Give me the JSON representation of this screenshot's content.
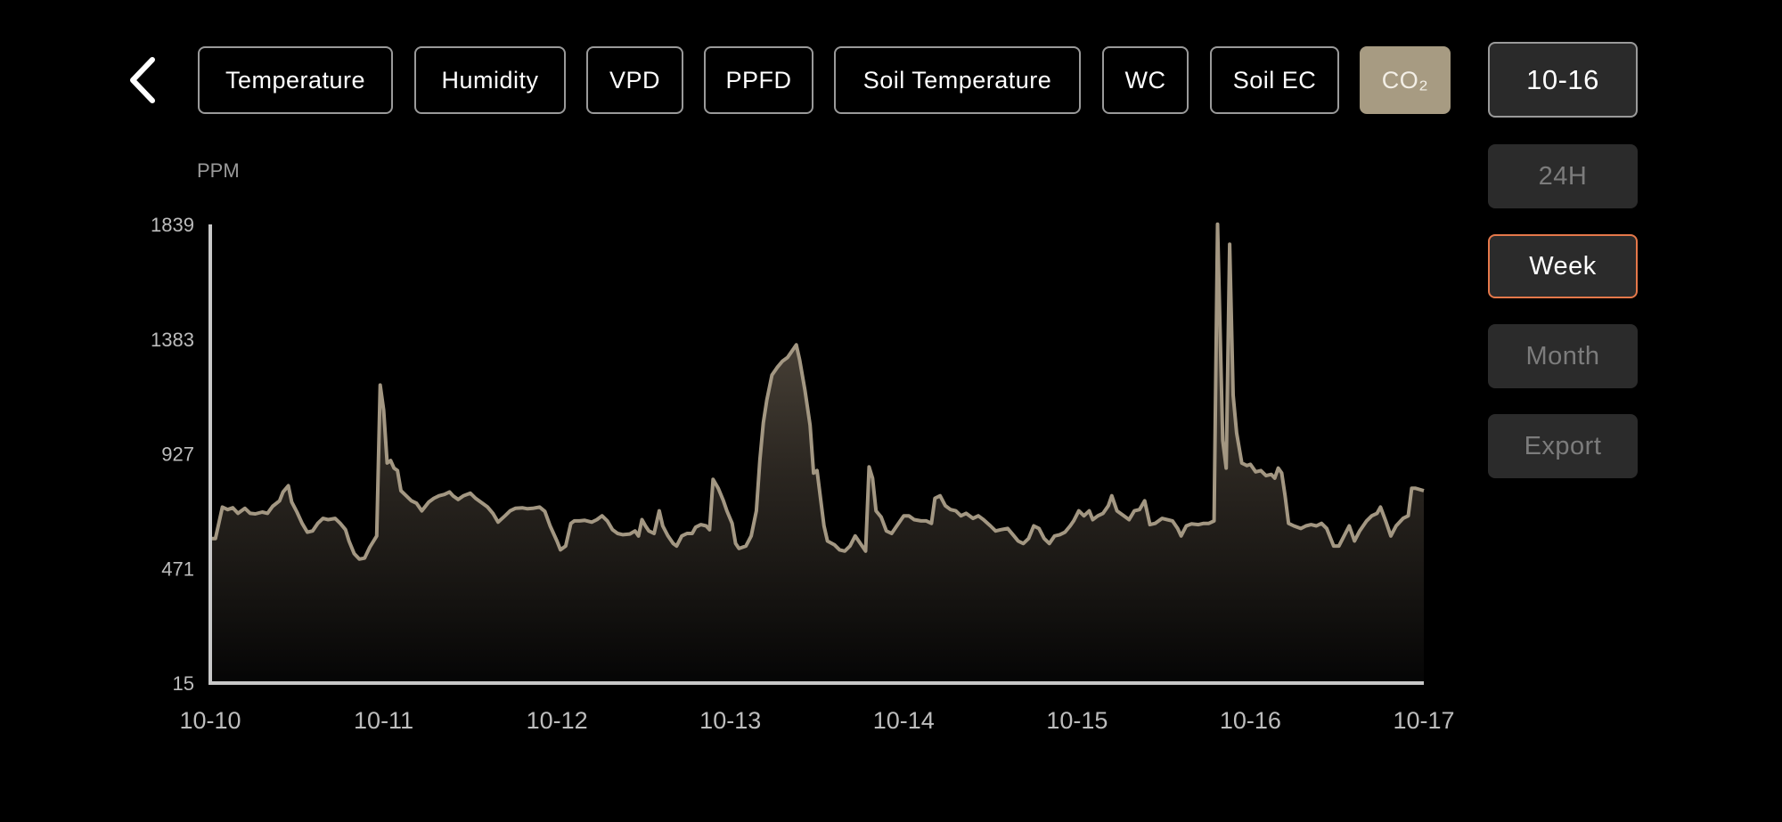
{
  "tabs": [
    {
      "label": "Temperature",
      "active": false
    },
    {
      "label": "Humidity",
      "active": false
    },
    {
      "label": "VPD",
      "active": false
    },
    {
      "label": "PPFD",
      "active": false
    },
    {
      "label": "Soil Temperature",
      "active": false
    },
    {
      "label": "WC",
      "active": false
    },
    {
      "label": "Soil EC",
      "active": false
    },
    {
      "label": "CO₂",
      "active": true
    }
  ],
  "side": {
    "date": "10-16",
    "range_24h": "24H",
    "range_week": "Week",
    "range_month": "Month",
    "export": "Export",
    "selected_range": "Week"
  },
  "colors": {
    "accent": "#a79b82",
    "line": "#a39782",
    "selection_border": "#e5784a",
    "axis": "#c8c8c8"
  },
  "chart_data": {
    "type": "area",
    "ylabel": "PPM",
    "yticks": [
      15,
      471,
      927,
      1383,
      1839
    ],
    "ylim": [
      15,
      1839
    ],
    "xticks": [
      "10-10",
      "10-11",
      "10-12",
      "10-13",
      "10-14",
      "10-15",
      "10-16",
      "10-17"
    ],
    "xlim": [
      0,
      7
    ],
    "grid": false,
    "series": [
      {
        "values": [
          [
            0.0,
            590
          ],
          [
            0.03,
            590
          ],
          [
            0.07,
            715
          ],
          [
            0.1,
            705
          ],
          [
            0.13,
            712
          ],
          [
            0.16,
            690
          ],
          [
            0.2,
            710
          ],
          [
            0.23,
            690
          ],
          [
            0.26,
            688
          ],
          [
            0.3,
            695
          ],
          [
            0.33,
            690
          ],
          [
            0.36,
            718
          ],
          [
            0.4,
            740
          ],
          [
            0.42,
            775
          ],
          [
            0.45,
            800
          ],
          [
            0.47,
            735
          ],
          [
            0.5,
            695
          ],
          [
            0.53,
            650
          ],
          [
            0.56,
            615
          ],
          [
            0.59,
            620
          ],
          [
            0.62,
            650
          ],
          [
            0.65,
            670
          ],
          [
            0.68,
            665
          ],
          [
            0.72,
            670
          ],
          [
            0.75,
            650
          ],
          [
            0.78,
            625
          ],
          [
            0.8,
            580
          ],
          [
            0.83,
            530
          ],
          [
            0.86,
            508
          ],
          [
            0.89,
            512
          ],
          [
            0.92,
            555
          ],
          [
            0.96,
            600
          ],
          [
            0.98,
            1200
          ],
          [
            1.0,
            1100
          ],
          [
            1.02,
            890
          ],
          [
            1.04,
            900
          ],
          [
            1.06,
            870
          ],
          [
            1.08,
            860
          ],
          [
            1.1,
            780
          ],
          [
            1.13,
            760
          ],
          [
            1.16,
            740
          ],
          [
            1.19,
            730
          ],
          [
            1.22,
            700
          ],
          [
            1.26,
            735
          ],
          [
            1.29,
            750
          ],
          [
            1.32,
            760
          ],
          [
            1.35,
            765
          ],
          [
            1.38,
            775
          ],
          [
            1.4,
            760
          ],
          [
            1.43,
            745
          ],
          [
            1.46,
            760
          ],
          [
            1.5,
            770
          ],
          [
            1.53,
            750
          ],
          [
            1.57,
            730
          ],
          [
            1.6,
            715
          ],
          [
            1.63,
            690
          ],
          [
            1.66,
            655
          ],
          [
            1.7,
            680
          ],
          [
            1.73,
            700
          ],
          [
            1.76,
            710
          ],
          [
            1.8,
            712
          ],
          [
            1.83,
            708
          ],
          [
            1.86,
            710
          ],
          [
            1.9,
            715
          ],
          [
            1.93,
            698
          ],
          [
            1.96,
            640
          ],
          [
            2.0,
            580
          ],
          [
            2.02,
            545
          ],
          [
            2.05,
            560
          ],
          [
            2.08,
            650
          ],
          [
            2.1,
            660
          ],
          [
            2.13,
            660
          ],
          [
            2.16,
            662
          ],
          [
            2.2,
            655
          ],
          [
            2.23,
            665
          ],
          [
            2.26,
            680
          ],
          [
            2.29,
            660
          ],
          [
            2.32,
            625
          ],
          [
            2.35,
            610
          ],
          [
            2.38,
            605
          ],
          [
            2.42,
            608
          ],
          [
            2.45,
            620
          ],
          [
            2.47,
            600
          ],
          [
            2.49,
            665
          ],
          [
            2.51,
            640
          ],
          [
            2.53,
            620
          ],
          [
            2.56,
            610
          ],
          [
            2.59,
            700
          ],
          [
            2.61,
            640
          ],
          [
            2.64,
            600
          ],
          [
            2.67,
            570
          ],
          [
            2.69,
            560
          ],
          [
            2.72,
            600
          ],
          [
            2.75,
            610
          ],
          [
            2.78,
            610
          ],
          [
            2.8,
            635
          ],
          [
            2.83,
            645
          ],
          [
            2.86,
            640
          ],
          [
            2.88,
            625
          ],
          [
            2.9,
            825
          ],
          [
            2.93,
            790
          ],
          [
            2.96,
            740
          ],
          [
            2.98,
            700
          ],
          [
            3.01,
            650
          ],
          [
            3.03,
            570
          ],
          [
            3.05,
            550
          ],
          [
            3.09,
            560
          ],
          [
            3.12,
            600
          ],
          [
            3.15,
            700
          ],
          [
            3.17,
            900
          ],
          [
            3.19,
            1050
          ],
          [
            3.21,
            1140
          ],
          [
            3.24,
            1240
          ],
          [
            3.27,
            1270
          ],
          [
            3.3,
            1295
          ],
          [
            3.33,
            1310
          ],
          [
            3.36,
            1340
          ],
          [
            3.38,
            1360
          ],
          [
            3.4,
            1300
          ],
          [
            3.43,
            1180
          ],
          [
            3.46,
            1040
          ],
          [
            3.48,
            850
          ],
          [
            3.5,
            860
          ],
          [
            3.52,
            750
          ],
          [
            3.54,
            640
          ],
          [
            3.56,
            580
          ],
          [
            3.6,
            565
          ],
          [
            3.63,
            545
          ],
          [
            3.66,
            540
          ],
          [
            3.69,
            560
          ],
          [
            3.72,
            600
          ],
          [
            3.76,
            560
          ],
          [
            3.78,
            540
          ],
          [
            3.8,
            875
          ],
          [
            3.82,
            830
          ],
          [
            3.84,
            700
          ],
          [
            3.87,
            675
          ],
          [
            3.9,
            620
          ],
          [
            3.93,
            610
          ],
          [
            3.96,
            640
          ],
          [
            4.0,
            680
          ],
          [
            4.03,
            680
          ],
          [
            4.06,
            665
          ],
          [
            4.1,
            660
          ],
          [
            4.13,
            660
          ],
          [
            4.16,
            650
          ],
          [
            4.18,
            750
          ],
          [
            4.21,
            760
          ],
          [
            4.24,
            720
          ],
          [
            4.27,
            705
          ],
          [
            4.3,
            700
          ],
          [
            4.33,
            680
          ],
          [
            4.36,
            690
          ],
          [
            4.4,
            670
          ],
          [
            4.43,
            680
          ],
          [
            4.46,
            665
          ],
          [
            4.5,
            640
          ],
          [
            4.53,
            620
          ],
          [
            4.56,
            625
          ],
          [
            4.6,
            630
          ],
          [
            4.63,
            605
          ],
          [
            4.66,
            580
          ],
          [
            4.69,
            570
          ],
          [
            4.72,
            590
          ],
          [
            4.75,
            640
          ],
          [
            4.78,
            630
          ],
          [
            4.81,
            590
          ],
          [
            4.84,
            570
          ],
          [
            4.87,
            600
          ],
          [
            4.9,
            605
          ],
          [
            4.93,
            615
          ],
          [
            4.96,
            640
          ],
          [
            4.98,
            660
          ],
          [
            5.01,
            700
          ],
          [
            5.04,
            680
          ],
          [
            5.07,
            700
          ],
          [
            5.09,
            665
          ],
          [
            5.12,
            680
          ],
          [
            5.15,
            690
          ],
          [
            5.18,
            720
          ],
          [
            5.2,
            760
          ],
          [
            5.23,
            700
          ],
          [
            5.27,
            680
          ],
          [
            5.3,
            665
          ],
          [
            5.33,
            700
          ],
          [
            5.36,
            705
          ],
          [
            5.39,
            740
          ],
          [
            5.42,
            645
          ],
          [
            5.45,
            650
          ],
          [
            5.49,
            670
          ],
          [
            5.52,
            665
          ],
          [
            5.55,
            660
          ],
          [
            5.58,
            630
          ],
          [
            5.6,
            600
          ],
          [
            5.63,
            640
          ],
          [
            5.66,
            648
          ],
          [
            5.7,
            645
          ],
          [
            5.73,
            650
          ],
          [
            5.76,
            650
          ],
          [
            5.79,
            660
          ],
          [
            5.81,
            1840
          ],
          [
            5.84,
            980
          ],
          [
            5.86,
            870
          ],
          [
            5.88,
            1760
          ],
          [
            5.9,
            1160
          ],
          [
            5.92,
            1010
          ],
          [
            5.95,
            890
          ],
          [
            5.98,
            880
          ],
          [
            6.0,
            885
          ],
          [
            6.03,
            855
          ],
          [
            6.06,
            860
          ],
          [
            6.09,
            840
          ],
          [
            6.12,
            845
          ],
          [
            6.14,
            830
          ],
          [
            6.16,
            870
          ],
          [
            6.18,
            850
          ],
          [
            6.2,
            760
          ],
          [
            6.22,
            650
          ],
          [
            6.25,
            640
          ],
          [
            6.29,
            630
          ],
          [
            6.32,
            640
          ],
          [
            6.35,
            645
          ],
          [
            6.38,
            640
          ],
          [
            6.41,
            650
          ],
          [
            6.44,
            630
          ],
          [
            6.48,
            560
          ],
          [
            6.51,
            560
          ],
          [
            6.54,
            600
          ],
          [
            6.57,
            640
          ],
          [
            6.6,
            580
          ],
          [
            6.63,
            620
          ],
          [
            6.67,
            660
          ],
          [
            6.7,
            680
          ],
          [
            6.73,
            690
          ],
          [
            6.75,
            715
          ],
          [
            6.78,
            660
          ],
          [
            6.81,
            600
          ],
          [
            6.84,
            640
          ],
          [
            6.88,
            670
          ],
          [
            6.91,
            680
          ],
          [
            6.93,
            790
          ],
          [
            6.95,
            790
          ],
          [
            7.0,
            780
          ]
        ]
      }
    ]
  }
}
